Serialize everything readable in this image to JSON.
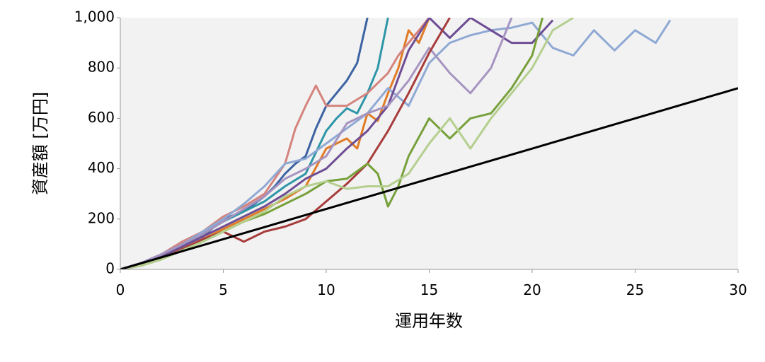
{
  "chart_data": {
    "type": "line",
    "ylabel": "資産額 [万円]",
    "xlabel": "運用年数",
    "xlim": [
      0,
      30
    ],
    "ylim": [
      0,
      1000
    ],
    "xticks": [
      0,
      5,
      10,
      15,
      20,
      25,
      30
    ],
    "yticks": [
      0,
      200,
      400,
      600,
      800,
      {
        "value": 1000,
        "label": "1,000"
      }
    ],
    "series": [
      {
        "color": "#3d63a3",
        "x": [
          0,
          1,
          2,
          3,
          4,
          5,
          6,
          6.5,
          7,
          7.5,
          8,
          8.5,
          9,
          9.5,
          10,
          10.5,
          11,
          11.5,
          12
        ],
        "values": [
          0,
          25,
          60,
          100,
          130,
          200,
          230,
          260,
          290,
          330,
          380,
          420,
          450,
          560,
          650,
          700,
          750,
          820,
          1000
        ]
      },
      {
        "color": "#2e96a8",
        "x": [
          0,
          1,
          2,
          3,
          4,
          5,
          6,
          7,
          8,
          9,
          10,
          10.5,
          11,
          11.5,
          12,
          12.5,
          13
        ],
        "values": [
          0,
          20,
          50,
          90,
          140,
          190,
          230,
          270,
          330,
          380,
          550,
          600,
          640,
          620,
          700,
          800,
          1000
        ]
      },
      {
        "color": "#e07b27",
        "x": [
          0,
          1,
          2,
          3,
          4,
          5,
          6,
          7,
          8,
          9,
          10,
          10.5,
          11,
          11.5,
          12,
          12.5,
          13,
          13.5,
          14,
          14.5,
          15
        ],
        "values": [
          0,
          20,
          45,
          80,
          120,
          160,
          200,
          240,
          280,
          330,
          480,
          500,
          520,
          480,
          620,
          590,
          700,
          800,
          950,
          900,
          1000
        ]
      },
      {
        "color": "#d4847d",
        "x": [
          0,
          1,
          2,
          3,
          4,
          5,
          6,
          7,
          8,
          8.5,
          9,
          9.5,
          10,
          11,
          12,
          13,
          13.5,
          14,
          14.5,
          15
        ],
        "values": [
          0,
          25,
          60,
          110,
          150,
          210,
          250,
          300,
          420,
          560,
          650,
          730,
          650,
          650,
          700,
          780,
          850,
          900,
          950,
          1000
        ]
      },
      {
        "color": "#8fa9d4",
        "x": [
          0,
          1,
          2,
          3,
          4,
          5,
          6,
          7,
          8,
          9,
          10,
          11,
          12,
          13,
          14,
          15,
          16,
          17,
          18,
          19,
          20,
          21,
          22,
          23,
          24,
          25,
          26,
          26.7
        ],
        "values": [
          0,
          25,
          60,
          100,
          150,
          200,
          260,
          330,
          420,
          440,
          500,
          560,
          620,
          720,
          650,
          820,
          900,
          930,
          950,
          960,
          980,
          880,
          850,
          950,
          870,
          950,
          900,
          990
        ]
      },
      {
        "color": "#6e4d94",
        "x": [
          0,
          1,
          2,
          3,
          4,
          5,
          6,
          7,
          8,
          9,
          10,
          11,
          12,
          13,
          14,
          15,
          16,
          17,
          18,
          19,
          20,
          21
        ],
        "values": [
          0,
          20,
          50,
          90,
          130,
          170,
          210,
          250,
          300,
          360,
          400,
          480,
          550,
          650,
          870,
          1000,
          920,
          1000,
          950,
          900,
          900,
          990
        ]
      },
      {
        "color": "#a694c1",
        "x": [
          0,
          1,
          2,
          3,
          4,
          5,
          6,
          7,
          8,
          9,
          10,
          11,
          12,
          13,
          14,
          15,
          16,
          17,
          18,
          19
        ],
        "values": [
          0,
          25,
          60,
          100,
          140,
          190,
          240,
          290,
          360,
          400,
          450,
          580,
          620,
          650,
          750,
          880,
          780,
          700,
          800,
          1000
        ]
      },
      {
        "color": "#a73c3b",
        "x": [
          0,
          1,
          2,
          3,
          4,
          5,
          6,
          7,
          8,
          9,
          10,
          11,
          12,
          13,
          14,
          15,
          16
        ],
        "values": [
          0,
          15,
          40,
          80,
          120,
          150,
          110,
          150,
          170,
          200,
          270,
          340,
          420,
          550,
          700,
          860,
          1000
        ]
      },
      {
        "color": "#77a03b",
        "x": [
          0,
          1,
          2,
          3,
          4,
          5,
          6,
          7,
          8,
          9,
          10,
          11,
          12,
          12.5,
          13,
          13.5,
          14,
          15,
          16,
          17,
          18,
          19,
          20,
          20.5
        ],
        "values": [
          0,
          15,
          40,
          75,
          110,
          150,
          190,
          220,
          260,
          300,
          350,
          360,
          420,
          380,
          250,
          330,
          450,
          600,
          520,
          600,
          620,
          720,
          850,
          1000
        ]
      },
      {
        "color": "#b4cf8e",
        "x": [
          0,
          1,
          2,
          3,
          4,
          5,
          6,
          7,
          8,
          9,
          10,
          11,
          12,
          13,
          14,
          15,
          16,
          17,
          18,
          19,
          20,
          21,
          22
        ],
        "values": [
          0,
          15,
          40,
          75,
          110,
          150,
          190,
          230,
          290,
          330,
          350,
          320,
          330,
          330,
          380,
          500,
          600,
          480,
          600,
          700,
          800,
          950,
          1000
        ]
      },
      {
        "color": "#000000",
        "x": [
          0,
          30
        ],
        "values": [
          0,
          720
        ]
      }
    ]
  }
}
